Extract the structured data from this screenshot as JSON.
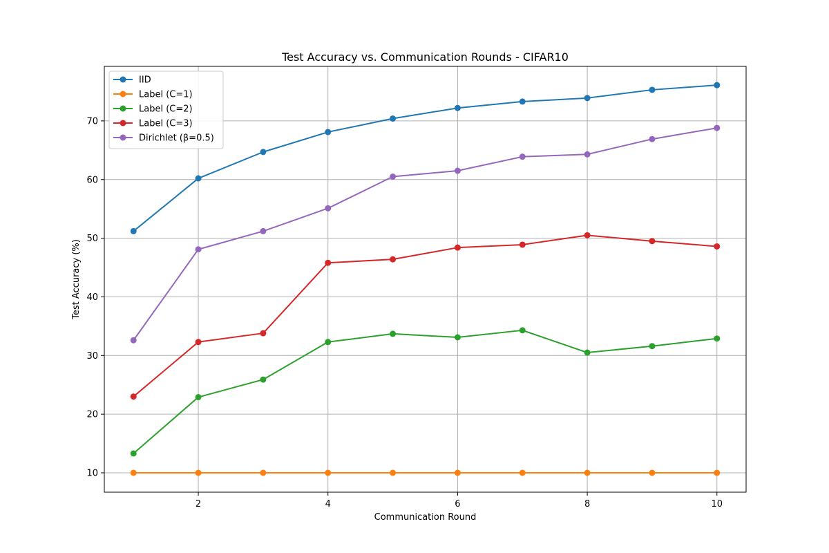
{
  "chart_data": {
    "type": "line",
    "title": "Test Accuracy vs. Communication Rounds - CIFAR10",
    "xlabel": "Communication Round",
    "ylabel": "Test Accuracy (%)",
    "x": [
      1,
      2,
      3,
      4,
      5,
      6,
      7,
      8,
      9,
      10
    ],
    "xlim": [
      0.55,
      10.45
    ],
    "ylim": [
      6.7,
      79.3
    ],
    "xticks": [
      2,
      4,
      6,
      8,
      10
    ],
    "yticks": [
      10,
      20,
      30,
      40,
      50,
      60,
      70
    ],
    "grid": true,
    "legend_position": "top-left",
    "series": [
      {
        "name": "IID",
        "color": "#1f77b4",
        "values": [
          51.2,
          60.2,
          64.7,
          68.1,
          70.4,
          72.2,
          73.3,
          73.9,
          75.3,
          76.1
        ]
      },
      {
        "name": "Label (C=1)",
        "color": "#ff7f0e",
        "values": [
          10.0,
          10.0,
          10.0,
          10.0,
          10.0,
          10.0,
          10.0,
          10.0,
          10.0,
          10.0
        ]
      },
      {
        "name": "Label (C=2)",
        "color": "#2ca02c",
        "values": [
          13.3,
          22.9,
          25.9,
          32.3,
          33.7,
          33.1,
          34.3,
          30.5,
          31.6,
          32.9
        ]
      },
      {
        "name": "Label (C=3)",
        "color": "#d62728",
        "values": [
          23.0,
          32.3,
          33.8,
          45.8,
          46.4,
          48.4,
          48.9,
          50.5,
          49.5,
          48.6
        ]
      },
      {
        "name": "Dirichlet (β=0.5)",
        "color": "#9467bd",
        "values": [
          32.6,
          48.1,
          51.2,
          55.1,
          60.5,
          61.5,
          63.9,
          64.3,
          66.9,
          68.8
        ]
      }
    ]
  }
}
